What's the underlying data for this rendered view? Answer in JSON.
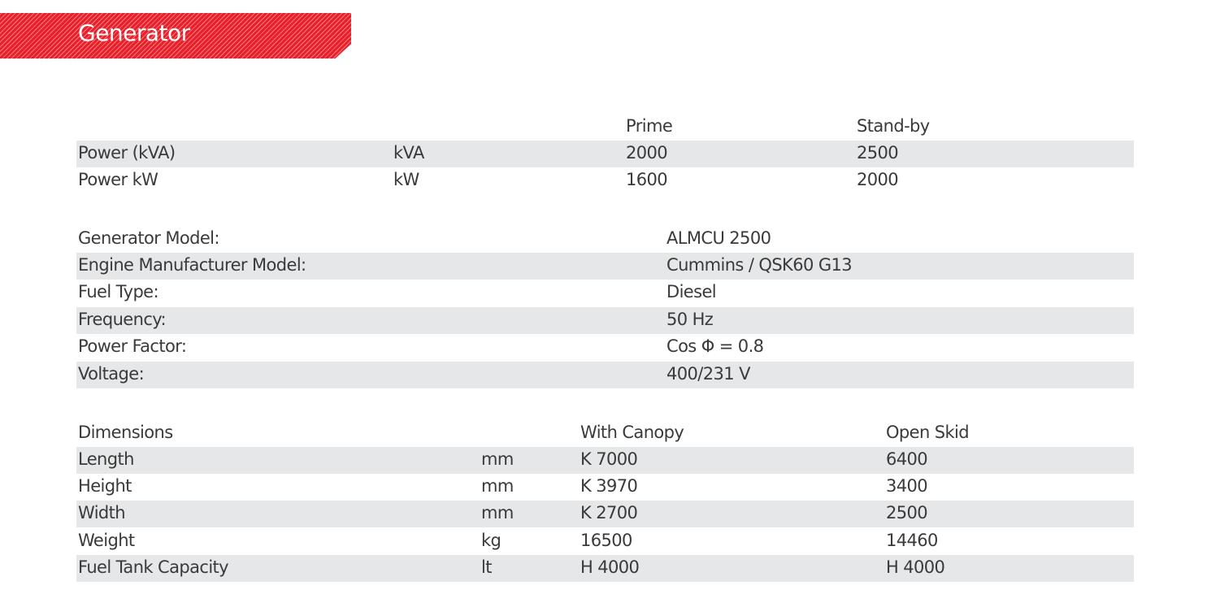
{
  "title": "Generator",
  "colors": {
    "banner": "#e8202a",
    "row_shade": "#e6e7e8",
    "text": "#3a3a3a"
  },
  "power": {
    "headers": [
      "Prime",
      "Stand-by"
    ],
    "rows": [
      {
        "label": "Power (kVA)",
        "unit": "kVA",
        "prime": "2000",
        "standby": "2500"
      },
      {
        "label": "Power kW",
        "unit": "kW",
        "prime": "1600",
        "standby": "2000"
      }
    ]
  },
  "specs": [
    {
      "label": "Generator Model:",
      "value": "ALMCU 2500"
    },
    {
      "label": "Engine Manufacturer Model:",
      "value": "Cummins / QSK60 G13"
    },
    {
      "label": "Fuel Type:",
      "value": "Diesel"
    },
    {
      "label": "Frequency:",
      "value": "50 Hz"
    },
    {
      "label": "Power Factor:",
      "value": "Cos Φ = 0.8"
    },
    {
      "label": "Voltage:",
      "value": "400/231 V"
    }
  ],
  "dimensions": {
    "headers": [
      "Dimensions",
      "With Canopy",
      "Open Skid"
    ],
    "rows": [
      {
        "label": "Length",
        "unit": "mm",
        "canopy": "K 7000",
        "skid": "6400"
      },
      {
        "label": "Height",
        "unit": "mm",
        "canopy": "K 3970",
        "skid": "3400"
      },
      {
        "label": "Width",
        "unit": "mm",
        "canopy": "K 2700",
        "skid": "2500"
      },
      {
        "label": "Weight",
        "unit": "kg",
        "canopy": "16500",
        "skid": "14460"
      },
      {
        "label": "Fuel Tank Capacity",
        "unit": "lt",
        "canopy": "H 4000",
        "skid": "H 4000"
      }
    ]
  }
}
